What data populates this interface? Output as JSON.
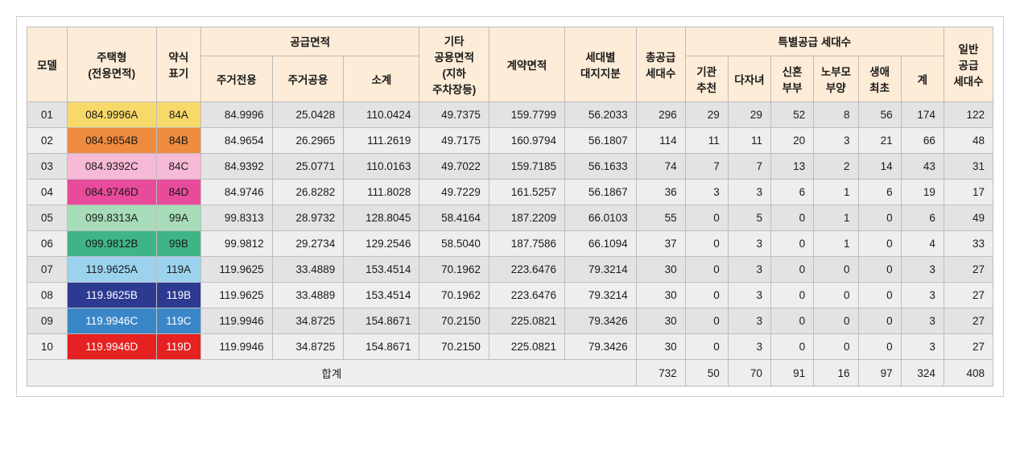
{
  "header": {
    "model": "모델",
    "type": "주택형\n(전용면적)",
    "abbr": "약식\n표기",
    "supply_area_group": "공급면적",
    "supply_area_sub": [
      "주거전용",
      "주거공용",
      "소계"
    ],
    "other_area": "기타\n공용면적\n(지하\n주차장등)",
    "contract_area": "계약면적",
    "land_share": "세대별\n대지지분",
    "total_supply": "총공급\n세대수",
    "special_group": "특별공급 세대수",
    "special_sub": [
      "기관\n추천",
      "다자녀",
      "신혼\n부부",
      "노부모\n부양",
      "생애\n최초",
      "계"
    ],
    "general": "일반\n공급\n세대수"
  },
  "col_widths": {
    "model": 45,
    "type": 100,
    "abbr": 50,
    "area1": 80,
    "area2": 80,
    "area3": 85,
    "other": 78,
    "contract": 85,
    "land": 80,
    "total": 55,
    "sp1": 48,
    "sp2": 48,
    "sp3": 48,
    "sp4": 50,
    "sp5": 48,
    "sp6": 48,
    "general": 55
  },
  "rows": [
    {
      "model": "01",
      "type": "084.9996A",
      "abbr": "84A",
      "color": "#f7d96a",
      "text_white": false,
      "a1": "84.9996",
      "a2": "25.0428",
      "a3": "110.0424",
      "other": "49.7375",
      "contract": "159.7799",
      "land": "56.2033",
      "total": "296",
      "sp": [
        "29",
        "29",
        "52",
        "8",
        "56",
        "174"
      ],
      "general": "122"
    },
    {
      "model": "02",
      "type": "084.9654B",
      "abbr": "84B",
      "color": "#ef8b3e",
      "text_white": false,
      "a1": "84.9654",
      "a2": "26.2965",
      "a3": "111.2619",
      "other": "49.7175",
      "contract": "160.9794",
      "land": "56.1807",
      "total": "114",
      "sp": [
        "11",
        "11",
        "20",
        "3",
        "21",
        "66"
      ],
      "general": "48"
    },
    {
      "model": "03",
      "type": "084.9392C",
      "abbr": "84C",
      "color": "#f6b9d6",
      "text_white": false,
      "a1": "84.9392",
      "a2": "25.0771",
      "a3": "110.0163",
      "other": "49.7022",
      "contract": "159.7185",
      "land": "56.1633",
      "total": "74",
      "sp": [
        "7",
        "7",
        "13",
        "2",
        "14",
        "43"
      ],
      "general": "31"
    },
    {
      "model": "04",
      "type": "084.9746D",
      "abbr": "84D",
      "color": "#e84b9a",
      "text_white": false,
      "a1": "84.9746",
      "a2": "26.8282",
      "a3": "111.8028",
      "other": "49.7229",
      "contract": "161.5257",
      "land": "56.1867",
      "total": "36",
      "sp": [
        "3",
        "3",
        "6",
        "1",
        "6",
        "19"
      ],
      "general": "17"
    },
    {
      "model": "05",
      "type": "099.8313A",
      "abbr": "99A",
      "color": "#a7dcb8",
      "text_white": false,
      "a1": "99.8313",
      "a2": "28.9732",
      "a3": "128.8045",
      "other": "58.4164",
      "contract": "187.2209",
      "land": "66.0103",
      "total": "55",
      "sp": [
        "0",
        "5",
        "0",
        "1",
        "0",
        "6"
      ],
      "general": "49"
    },
    {
      "model": "06",
      "type": "099.9812B",
      "abbr": "99B",
      "color": "#3fb587",
      "text_white": false,
      "a1": "99.9812",
      "a2": "29.2734",
      "a3": "129.2546",
      "other": "58.5040",
      "contract": "187.7586",
      "land": "66.1094",
      "total": "37",
      "sp": [
        "0",
        "3",
        "0",
        "1",
        "0",
        "4"
      ],
      "general": "33"
    },
    {
      "model": "07",
      "type": "119.9625A",
      "abbr": "119A",
      "color": "#9bd2ee",
      "text_white": false,
      "a1": "119.9625",
      "a2": "33.4889",
      "a3": "153.4514",
      "other": "70.1962",
      "contract": "223.6476",
      "land": "79.3214",
      "total": "30",
      "sp": [
        "0",
        "3",
        "0",
        "0",
        "0",
        "3"
      ],
      "general": "27"
    },
    {
      "model": "08",
      "type": "119.9625B",
      "abbr": "119B",
      "color": "#2c3a92",
      "text_white": true,
      "a1": "119.9625",
      "a2": "33.4889",
      "a3": "153.4514",
      "other": "70.1962",
      "contract": "223.6476",
      "land": "79.3214",
      "total": "30",
      "sp": [
        "0",
        "3",
        "0",
        "0",
        "0",
        "3"
      ],
      "general": "27"
    },
    {
      "model": "09",
      "type": "119.9946C",
      "abbr": "119C",
      "color": "#3a87c7",
      "text_white": true,
      "a1": "119.9946",
      "a2": "34.8725",
      "a3": "154.8671",
      "other": "70.2150",
      "contract": "225.0821",
      "land": "79.3426",
      "total": "30",
      "sp": [
        "0",
        "3",
        "0",
        "0",
        "0",
        "3"
      ],
      "general": "27"
    },
    {
      "model": "10",
      "type": "119.9946D",
      "abbr": "119D",
      "color": "#e62121",
      "text_white": true,
      "a1": "119.9946",
      "a2": "34.8725",
      "a3": "154.8671",
      "other": "70.2150",
      "contract": "225.0821",
      "land": "79.3426",
      "total": "30",
      "sp": [
        "0",
        "3",
        "0",
        "0",
        "0",
        "3"
      ],
      "general": "27"
    }
  ],
  "footer": {
    "label": "합계",
    "total": "732",
    "sp": [
      "50",
      "70",
      "91",
      "16",
      "97",
      "324"
    ],
    "general": "408"
  }
}
